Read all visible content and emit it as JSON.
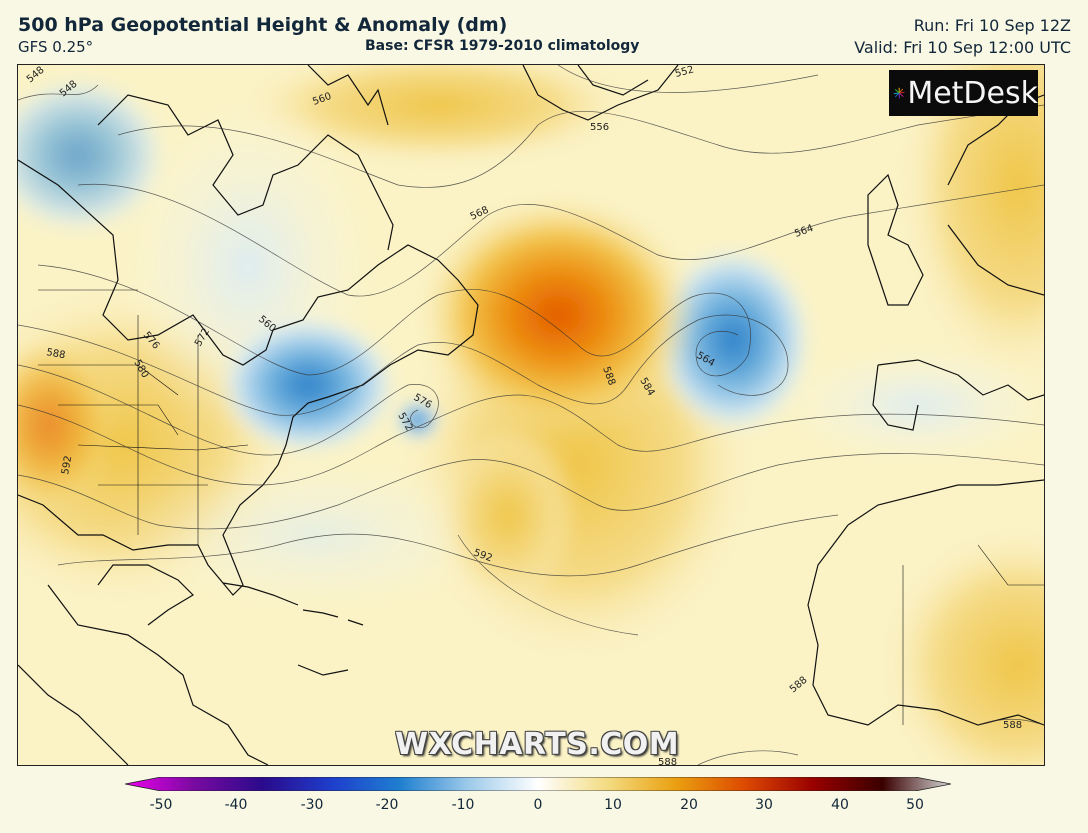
{
  "header": {
    "title": "500 hPa Geopotential Height & Anomaly (dm)",
    "model": "GFS 0.25°",
    "base": "Base: CFSR 1979-2010 climatology",
    "run": "Run: Fri 10 Sep 12Z",
    "valid": "Valid: Fri 10 Sep 12:00 UTC"
  },
  "branding": {
    "logo_text": "MetDesk",
    "watermark": "WXCHARTS.COM"
  },
  "contour_labels": [
    "548",
    "548",
    "556",
    "552",
    "556",
    "560",
    "568",
    "564",
    "560",
    "576",
    "572",
    "580",
    "588",
    "592",
    "588",
    "584",
    "564",
    "576",
    "572",
    "592",
    "588",
    "588",
    "588"
  ],
  "colorbar": {
    "ticks": [
      "-50",
      "-40",
      "-30",
      "-20",
      "-10",
      "0",
      "10",
      "20",
      "30",
      "40",
      "50"
    ],
    "stops": [
      "#ee00ee",
      "#7a0aa0",
      "#2a0a8c",
      "#1e3ecc",
      "#1f7fd0",
      "#9fcbea",
      "#ffffff",
      "#f3dc83",
      "#eaa010",
      "#dd4a00",
      "#9a0000",
      "#3a0000",
      "#d8d8d8"
    ]
  }
}
